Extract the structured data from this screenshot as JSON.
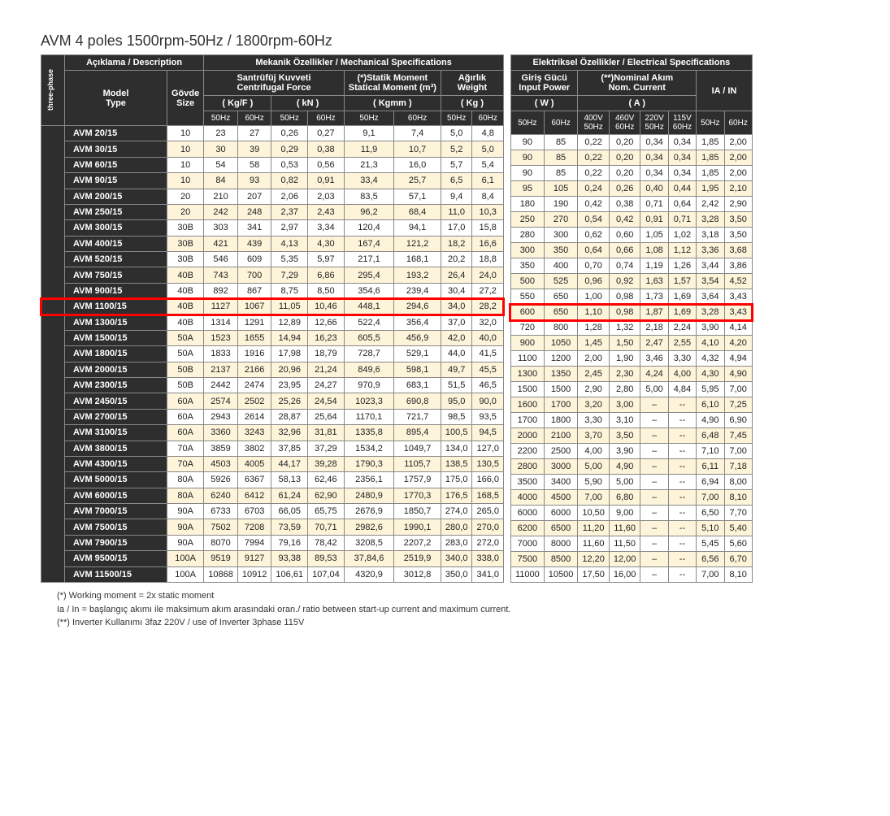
{
  "title": "AVM 4 poles 1500rpm-50Hz  / 1800rpm-60Hz",
  "group1": {
    "desc": "Açıklama / Description",
    "mech": "Mekanik Özellikler / Mechanical Specifications",
    "elec": "Elektriksel Özellikler / Electrical Specifications"
  },
  "headers": {
    "model": "Model\nType",
    "size": "Gövde\nSize",
    "cf": "Santrüfüj Kuvveti\nCentrifugal Force",
    "cf_kgf": "( Kg/F )",
    "cf_kn": "( kN )",
    "sm": "(*)Statik Moment\nStatical Moment (m³)",
    "sm_unit": "( Kgmm )",
    "wt": "Ağırlık\nWeight",
    "wt_unit": "( Kg )",
    "ip": "Giriş Gücü\nInput Power",
    "ip_unit": "( W )",
    "nc": "(**)Nominal Akım\nNom. Current",
    "nc_unit": "( A )",
    "iain": "IA / IN"
  },
  "sub": {
    "50": "50Hz",
    "60": "60Hz",
    "400_50": "400V\n50Hz",
    "460_60": "460V\n60Hz",
    "220_50": "220V\n50Hz",
    "115_60": "115V\n60Hz"
  },
  "side": "three-phase",
  "highlight_row_index": 11,
  "rows": [
    {
      "m": "AVM 20/15",
      "sz": "10",
      "cf50": "23",
      "cf60": "27",
      "kn50": "0,26",
      "kn60": "0,27",
      "sm50": "9,1",
      "sm60": "7,4",
      "w50": "5,0",
      "w60": "4,8",
      "ip50": "90",
      "ip60": "85",
      "a1": "0,22",
      "a2": "0,20",
      "a3": "0,34",
      "a4": "0,34",
      "i50": "1,85",
      "i60": "2,00"
    },
    {
      "m": "AVM 30/15",
      "sz": "10",
      "cf50": "30",
      "cf60": "39",
      "kn50": "0,29",
      "kn60": "0,38",
      "sm50": "11,9",
      "sm60": "10,7",
      "w50": "5,2",
      "w60": "5,0",
      "ip50": "90",
      "ip60": "85",
      "a1": "0,22",
      "a2": "0,20",
      "a3": "0,34",
      "a4": "0,34",
      "i50": "1,85",
      "i60": "2,00"
    },
    {
      "m": "AVM 60/15",
      "sz": "10",
      "cf50": "54",
      "cf60": "58",
      "kn50": "0,53",
      "kn60": "0,56",
      "sm50": "21,3",
      "sm60": "16,0",
      "w50": "5,7",
      "w60": "5,4",
      "ip50": "90",
      "ip60": "85",
      "a1": "0,22",
      "a2": "0,20",
      "a3": "0,34",
      "a4": "0,34",
      "i50": "1,85",
      "i60": "2,00"
    },
    {
      "m": "AVM 90/15",
      "sz": "10",
      "cf50": "84",
      "cf60": "93",
      "kn50": "0,82",
      "kn60": "0,91",
      "sm50": "33,4",
      "sm60": "25,7",
      "w50": "6,5",
      "w60": "6,1",
      "ip50": "95",
      "ip60": "105",
      "a1": "0,24",
      "a2": "0,26",
      "a3": "0,40",
      "a4": "0,44",
      "i50": "1,95",
      "i60": "2,10"
    },
    {
      "m": "AVM 200/15",
      "sz": "20",
      "cf50": "210",
      "cf60": "207",
      "kn50": "2,06",
      "kn60": "2,03",
      "sm50": "83,5",
      "sm60": "57,1",
      "w50": "9,4",
      "w60": "8,4",
      "ip50": "180",
      "ip60": "190",
      "a1": "0,42",
      "a2": "0,38",
      "a3": "0,71",
      "a4": "0,64",
      "i50": "2,42",
      "i60": "2,90"
    },
    {
      "m": "AVM 250/15",
      "sz": "20",
      "cf50": "242",
      "cf60": "248",
      "kn50": "2,37",
      "kn60": "2,43",
      "sm50": "96,2",
      "sm60": "68,4",
      "w50": "11,0",
      "w60": "10,3",
      "ip50": "250",
      "ip60": "270",
      "a1": "0,54",
      "a2": "0,42",
      "a3": "0,91",
      "a4": "0,71",
      "i50": "3,28",
      "i60": "3,50"
    },
    {
      "m": "AVM 300/15",
      "sz": "30B",
      "cf50": "303",
      "cf60": "341",
      "kn50": "2,97",
      "kn60": "3,34",
      "sm50": "120,4",
      "sm60": "94,1",
      "w50": "17,0",
      "w60": "15,8",
      "ip50": "280",
      "ip60": "300",
      "a1": "0,62",
      "a2": "0,60",
      "a3": "1,05",
      "a4": "1,02",
      "i50": "3,18",
      "i60": "3,50"
    },
    {
      "m": "AVM 400/15",
      "sz": "30B",
      "cf50": "421",
      "cf60": "439",
      "kn50": "4,13",
      "kn60": "4,30",
      "sm50": "167,4",
      "sm60": "121,2",
      "w50": "18,2",
      "w60": "16,6",
      "ip50": "300",
      "ip60": "350",
      "a1": "0,64",
      "a2": "0,66",
      "a3": "1,08",
      "a4": "1,12",
      "i50": "3,36",
      "i60": "3,68"
    },
    {
      "m": "AVM 520/15",
      "sz": "30B",
      "cf50": "546",
      "cf60": "609",
      "kn50": "5,35",
      "kn60": "5,97",
      "sm50": "217,1",
      "sm60": "168,1",
      "w50": "20,2",
      "w60": "18,8",
      "ip50": "350",
      "ip60": "400",
      "a1": "0,70",
      "a2": "0,74",
      "a3": "1,19",
      "a4": "1,26",
      "i50": "3,44",
      "i60": "3,86"
    },
    {
      "m": "AVM 750/15",
      "sz": "40B",
      "cf50": "743",
      "cf60": "700",
      "kn50": "7,29",
      "kn60": "6,86",
      "sm50": "295,4",
      "sm60": "193,2",
      "w50": "26,4",
      "w60": "24,0",
      "ip50": "500",
      "ip60": "525",
      "a1": "0,96",
      "a2": "0,92",
      "a3": "1,63",
      "a4": "1,57",
      "i50": "3,54",
      "i60": "4,52"
    },
    {
      "m": "AVM 900/15",
      "sz": "40B",
      "cf50": "892",
      "cf60": "867",
      "kn50": "8,75",
      "kn60": "8,50",
      "sm50": "354,6",
      "sm60": "239,4",
      "w50": "30,4",
      "w60": "27,2",
      "ip50": "550",
      "ip60": "650",
      "a1": "1,00",
      "a2": "0,98",
      "a3": "1,73",
      "a4": "1,69",
      "i50": "3,64",
      "i60": "3,43"
    },
    {
      "m": "AVM 1100/15",
      "sz": "40B",
      "cf50": "1127",
      "cf60": "1067",
      "kn50": "11,05",
      "kn60": "10,46",
      "sm50": "448,1",
      "sm60": "294,6",
      "w50": "34,0",
      "w60": "28,2",
      "ip50": "600",
      "ip60": "650",
      "a1": "1,10",
      "a2": "0,98",
      "a3": "1,87",
      "a4": "1,69",
      "i50": "3,28",
      "i60": "3,43"
    },
    {
      "m": "AVM 1300/15",
      "sz": "40B",
      "cf50": "1314",
      "cf60": "1291",
      "kn50": "12,89",
      "kn60": "12,66",
      "sm50": "522,4",
      "sm60": "356,4",
      "w50": "37,0",
      "w60": "32,0",
      "ip50": "720",
      "ip60": "800",
      "a1": "1,28",
      "a2": "1,32",
      "a3": "2,18",
      "a4": "2,24",
      "i50": "3,90",
      "i60": "4,14"
    },
    {
      "m": "AVM 1500/15",
      "sz": "50A",
      "cf50": "1523",
      "cf60": "1655",
      "kn50": "14,94",
      "kn60": "16,23",
      "sm50": "605,5",
      "sm60": "456,9",
      "w50": "42,0",
      "w60": "40,0",
      "ip50": "900",
      "ip60": "1050",
      "a1": "1,45",
      "a2": "1,50",
      "a3": "2,47",
      "a4": "2,55",
      "i50": "4,10",
      "i60": "4,20"
    },
    {
      "m": "AVM 1800/15",
      "sz": "50A",
      "cf50": "1833",
      "cf60": "1916",
      "kn50": "17,98",
      "kn60": "18,79",
      "sm50": "728,7",
      "sm60": "529,1",
      "w50": "44,0",
      "w60": "41,5",
      "ip50": "1100",
      "ip60": "1200",
      "a1": "2,00",
      "a2": "1,90",
      "a3": "3,46",
      "a4": "3,30",
      "i50": "4,32",
      "i60": "4,94"
    },
    {
      "m": "AVM 2000/15",
      "sz": "50B",
      "cf50": "2137",
      "cf60": "2166",
      "kn50": "20,96",
      "kn60": "21,24",
      "sm50": "849,6",
      "sm60": "598,1",
      "w50": "49,7",
      "w60": "45,5",
      "ip50": "1300",
      "ip60": "1350",
      "a1": "2,45",
      "a2": "2,30",
      "a3": "4,24",
      "a4": "4,00",
      "i50": "4,30",
      "i60": "4,90"
    },
    {
      "m": "AVM 2300/15",
      "sz": "50B",
      "cf50": "2442",
      "cf60": "2474",
      "kn50": "23,95",
      "kn60": "24,27",
      "sm50": "970,9",
      "sm60": "683,1",
      "w50": "51,5",
      "w60": "46,5",
      "ip50": "1500",
      "ip60": "1500",
      "a1": "2,90",
      "a2": "2,80",
      "a3": "5,00",
      "a4": "4,84",
      "i50": "5,95",
      "i60": "7,00"
    },
    {
      "m": "AVM 2450/15",
      "sz": "60A",
      "cf50": "2574",
      "cf60": "2502",
      "kn50": "25,26",
      "kn60": "24,54",
      "sm50": "1023,3",
      "sm60": "690,8",
      "w50": "95,0",
      "w60": "90,0",
      "ip50": "1600",
      "ip60": "1700",
      "a1": "3,20",
      "a2": "3,00",
      "a3": "–",
      "a4": "--",
      "i50": "6,10",
      "i60": "7,25"
    },
    {
      "m": "AVM 2700/15",
      "sz": "60A",
      "cf50": "2943",
      "cf60": "2614",
      "kn50": "28,87",
      "kn60": "25,64",
      "sm50": "1170,1",
      "sm60": "721,7",
      "w50": "98,5",
      "w60": "93,5",
      "ip50": "1700",
      "ip60": "1800",
      "a1": "3,30",
      "a2": "3,10",
      "a3": "–",
      "a4": "--",
      "i50": "4,90",
      "i60": "6,90"
    },
    {
      "m": "AVM 3100/15",
      "sz": "60A",
      "cf50": "3360",
      "cf60": "3243",
      "kn50": "32,96",
      "kn60": "31,81",
      "sm50": "1335,8",
      "sm60": "895,4",
      "w50": "100,5",
      "w60": "94,5",
      "ip50": "2000",
      "ip60": "2100",
      "a1": "3,70",
      "a2": "3,50",
      "a3": "–",
      "a4": "--",
      "i50": "6,48",
      "i60": "7,45"
    },
    {
      "m": "AVM 3800/15",
      "sz": "70A",
      "cf50": "3859",
      "cf60": "3802",
      "kn50": "37,85",
      "kn60": "37,29",
      "sm50": "1534,2",
      "sm60": "1049,7",
      "w50": "134,0",
      "w60": "127,0",
      "ip50": "2200",
      "ip60": "2500",
      "a1": "4,00",
      "a2": "3,90",
      "a3": "–",
      "a4": "--",
      "i50": "7,10",
      "i60": "7,00"
    },
    {
      "m": "AVM 4300/15",
      "sz": "70A",
      "cf50": "4503",
      "cf60": "4005",
      "kn50": "44,17",
      "kn60": "39,28",
      "sm50": "1790,3",
      "sm60": "1105,7",
      "w50": "138,5",
      "w60": "130,5",
      "ip50": "2800",
      "ip60": "3000",
      "a1": "5,00",
      "a2": "4,90",
      "a3": "–",
      "a4": "--",
      "i50": "6,11",
      "i60": "7,18"
    },
    {
      "m": "AVM 5000/15",
      "sz": "80A",
      "cf50": "5926",
      "cf60": "6367",
      "kn50": "58,13",
      "kn60": "62,46",
      "sm50": "2356,1",
      "sm60": "1757,9",
      "w50": "175,0",
      "w60": "166,0",
      "ip50": "3500",
      "ip60": "3400",
      "a1": "5,90",
      "a2": "5,00",
      "a3": "–",
      "a4": "--",
      "i50": "6,94",
      "i60": "8,00"
    },
    {
      "m": "AVM 6000/15",
      "sz": "80A",
      "cf50": "6240",
      "cf60": "6412",
      "kn50": "61,24",
      "kn60": "62,90",
      "sm50": "2480,9",
      "sm60": "1770,3",
      "w50": "176,5",
      "w60": "168,5",
      "ip50": "4000",
      "ip60": "4500",
      "a1": "7,00",
      "a2": "6,80",
      "a3": "–",
      "a4": "--",
      "i50": "7,00",
      "i60": "8,10"
    },
    {
      "m": "AVM 7000/15",
      "sz": "90A",
      "cf50": "6733",
      "cf60": "6703",
      "kn50": "66,05",
      "kn60": "65,75",
      "sm50": "2676,9",
      "sm60": "1850,7",
      "w50": "274,0",
      "w60": "265,0",
      "ip50": "6000",
      "ip60": "6000",
      "a1": "10,50",
      "a2": "9,00",
      "a3": "–",
      "a4": "--",
      "i50": "6,50",
      "i60": "7,70"
    },
    {
      "m": "AVM 7500/15",
      "sz": "90A",
      "cf50": "7502",
      "cf60": "7208",
      "kn50": "73,59",
      "kn60": "70,71",
      "sm50": "2982,6",
      "sm60": "1990,1",
      "w50": "280,0",
      "w60": "270,0",
      "ip50": "6200",
      "ip60": "6500",
      "a1": "11,20",
      "a2": "11,60",
      "a3": "–",
      "a4": "--",
      "i50": "5,10",
      "i60": "5,40"
    },
    {
      "m": "AVM 7900/15",
      "sz": "90A",
      "cf50": "8070",
      "cf60": "7994",
      "kn50": "79,16",
      "kn60": "78,42",
      "sm50": "3208,5",
      "sm60": "2207,2",
      "w50": "283,0",
      "w60": "272,0",
      "ip50": "7000",
      "ip60": "8000",
      "a1": "11,60",
      "a2": "11,50",
      "a3": "–",
      "a4": "--",
      "i50": "5,45",
      "i60": "5,60"
    },
    {
      "m": "AVM 9500/15",
      "sz": "100A",
      "cf50": "9519",
      "cf60": "9127",
      "kn50": "93,38",
      "kn60": "89,53",
      "sm50": "37,84,6",
      "sm60": "2519,9",
      "w50": "340,0",
      "w60": "338,0",
      "ip50": "7500",
      "ip60": "8500",
      "a1": "12,20",
      "a2": "12,00",
      "a3": "–",
      "a4": "--",
      "i50": "6,56",
      "i60": "6,70"
    },
    {
      "m": "AVM 11500/15",
      "sz": "100A",
      "cf50": "10868",
      "cf60": "10912",
      "kn50": "106,61",
      "kn60": "107,04",
      "sm50": "4320,9",
      "sm60": "3012,8",
      "w50": "350,0",
      "w60": "341,0",
      "ip50": "11000",
      "ip60": "10500",
      "a1": "17,50",
      "a2": "16,00",
      "a3": "–",
      "a4": "--",
      "i50": "7,00",
      "i60": "8,10"
    }
  ],
  "foot": {
    "l1": "(*) Working moment = 2x static moment",
    "l2": "Ia / In = başlangıç akımı ile maksimum akım arasındaki oran./ ratio between start-up current and maximum current.",
    "l3": "(**) Inverter Kullanımı 3faz 220V / use of Inverter 3phase 115V"
  }
}
